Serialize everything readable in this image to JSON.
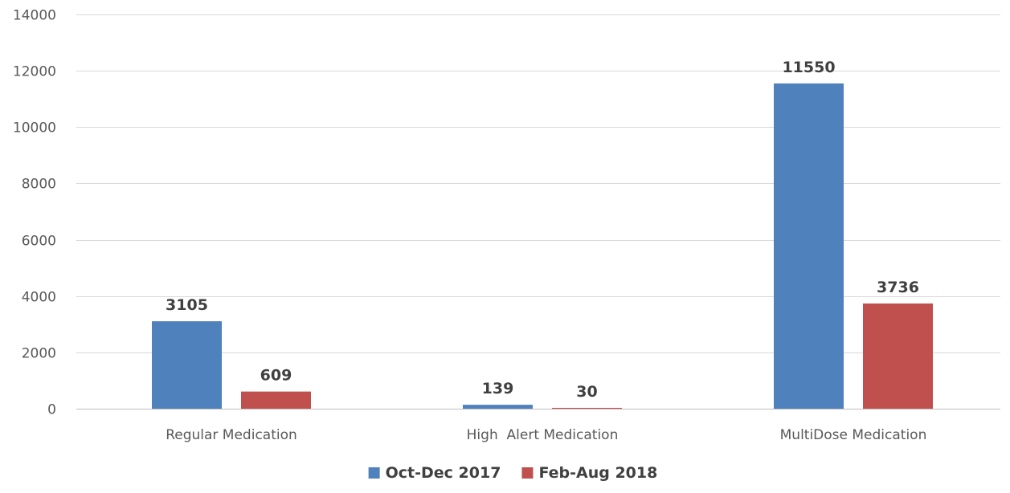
{
  "chart_data": {
    "type": "bar",
    "categories": [
      "Regular Medication",
      "High  Alert Medication",
      "MultiDose Medication"
    ],
    "series": [
      {
        "name": "Oct-Dec 2017",
        "values": [
          3105,
          139,
          11550
        ],
        "color": "#4F81BD"
      },
      {
        "name": "Feb-Aug 2018",
        "values": [
          609,
          30,
          3736
        ],
        "color": "#C0504D"
      }
    ],
    "title": "",
    "xlabel": "",
    "ylabel": "",
    "ylim": [
      0,
      14000
    ],
    "yticks": [
      0,
      2000,
      4000,
      6000,
      8000,
      10000,
      12000,
      14000
    ],
    "grid": true,
    "legend_position": "bottom",
    "data_labels": true
  }
}
